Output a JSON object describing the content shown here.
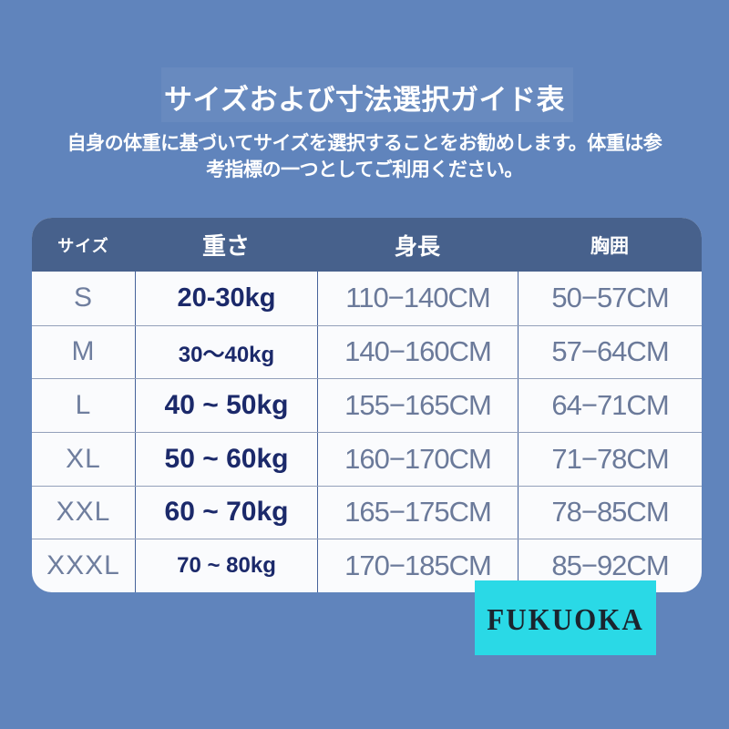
{
  "title": "サイズおよび寸法選択ガイド表",
  "subtitle": {
    "line1": "自身の体重に基づいてサイズを選択することをお勧めします。体重は参",
    "line2": "考指標の一つとしてご利用ください。"
  },
  "table": {
    "headers": [
      {
        "label": "サイズ"
      },
      {
        "label": "重さ"
      },
      {
        "label": "身長"
      },
      {
        "label": "胸囲"
      }
    ],
    "rows": [
      {
        "size": "S",
        "weight": "20-30kg",
        "height": "110−140CM",
        "chest": "50−57CM"
      },
      {
        "size": "M",
        "weight": "30〜40kg",
        "height": "140−160CM",
        "chest": "57−64CM"
      },
      {
        "size": "L",
        "weight": "40 ~ 50kg",
        "height": "155−165CM",
        "chest": "64−71CM"
      },
      {
        "size": "XL",
        "weight": "50 ~ 60kg",
        "height": "160−170CM",
        "chest": "71−78CM"
      },
      {
        "size": "XXL",
        "weight": "60 ~ 70kg",
        "height": "165−175CM",
        "chest": "78−85CM"
      },
      {
        "size": "XXXL",
        "weight": "70 ~ 80kg",
        "height": "170−185CM",
        "chest": "85−92CM"
      }
    ]
  },
  "badge": {
    "label": "FUKUOKA"
  },
  "colors": {
    "page_background": "#6084bc",
    "table_header_bg": "#47618c",
    "table_body_bg": "#fafbfd",
    "weight_text": "#1b296a",
    "muted_text": "#6b7a9a",
    "badge_bg": "#2ad9e6",
    "badge_text": "#1a242e"
  },
  "chart_data": {
    "type": "table",
    "title": "サイズおよび寸法選択ガイド表",
    "columns": [
      "サイズ",
      "重さ",
      "身長",
      "胸囲"
    ],
    "rows": [
      [
        "S",
        "20-30kg",
        "110−140CM",
        "50−57CM"
      ],
      [
        "M",
        "30〜40kg",
        "140−160CM",
        "57−64CM"
      ],
      [
        "L",
        "40 ~ 50kg",
        "155−165CM",
        "64−71CM"
      ],
      [
        "XL",
        "50 ~ 60kg",
        "160−170CM",
        "71−78CM"
      ],
      [
        "XXL",
        "60 ~ 70kg",
        "165−175CM",
        "78−85CM"
      ],
      [
        "XXXL",
        "70 ~ 80kg",
        "170−185CM",
        "85−92CM"
      ]
    ]
  }
}
